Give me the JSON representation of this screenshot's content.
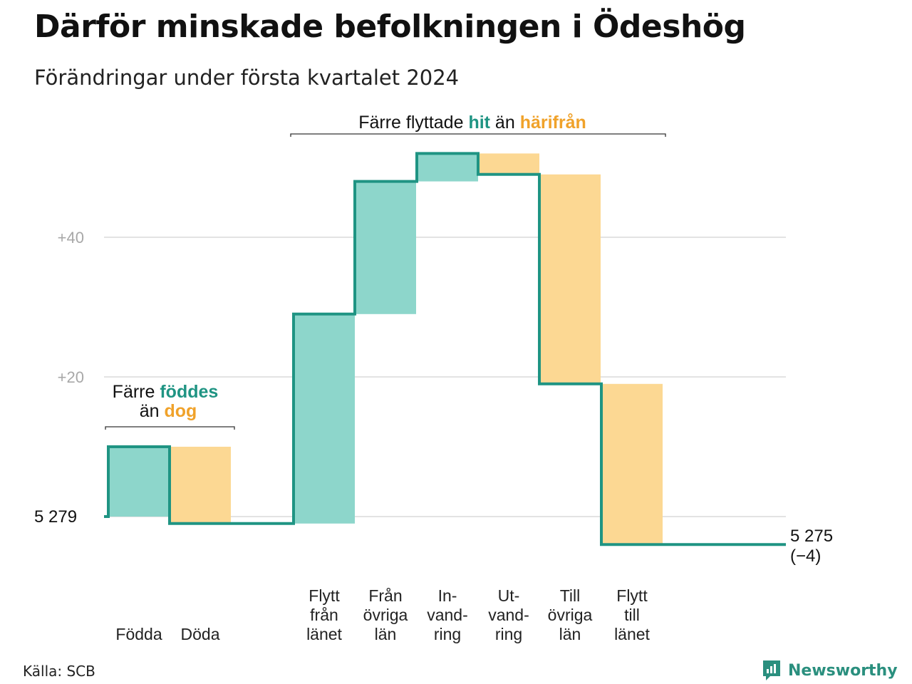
{
  "title": "Därför minskade befolkningen i Ödeshög",
  "subtitle": "Förändringar under första kvartalet 2024",
  "source": "Källa: SCB",
  "brand": "Newsworthy",
  "colors": {
    "increase_fill": "#8dd6cb",
    "decrease_fill": "#fcd893",
    "line": "#1f9483",
    "accent_teal": "#1f9483",
    "accent_orange": "#f0a22a",
    "grid": "#e3e3e3",
    "tick_text": "#a8a8a8"
  },
  "annotations": {
    "migration": {
      "prefix": "Färre flyttade",
      "hit": "hit",
      "mid": "än",
      "harifran": "härifrån"
    },
    "births": {
      "prefix": "Färre",
      "fodes": "föddes",
      "mid": "än",
      "dog": "dog"
    }
  },
  "chart_data": {
    "type": "waterfall",
    "start": {
      "label": "5 279",
      "value": 5279
    },
    "end": {
      "label": "5 275",
      "change_label": "(−4)",
      "value": 5275
    },
    "y_ticks": [
      {
        "label": "+40",
        "offset": 40
      },
      {
        "label": "+20",
        "offset": 20
      }
    ],
    "ylim_offset": [
      -5,
      52
    ],
    "steps": [
      {
        "category": [
          "Födda"
        ],
        "change": 10
      },
      {
        "category": [
          "Döda"
        ],
        "change": -11
      },
      {
        "category": [
          "Flytt",
          "från",
          "länet"
        ],
        "change": 30
      },
      {
        "category": [
          "Från",
          "övriga",
          "län"
        ],
        "change": 19
      },
      {
        "category": [
          "In-",
          "vand-",
          "ring"
        ],
        "change": 4
      },
      {
        "category": [
          "Ut-",
          "vand-",
          "ring"
        ],
        "change": -3
      },
      {
        "category": [
          "Till",
          "övriga",
          "län"
        ],
        "change": -30
      },
      {
        "category": [
          "Flytt",
          "till",
          "länet"
        ],
        "change": -23
      }
    ]
  }
}
